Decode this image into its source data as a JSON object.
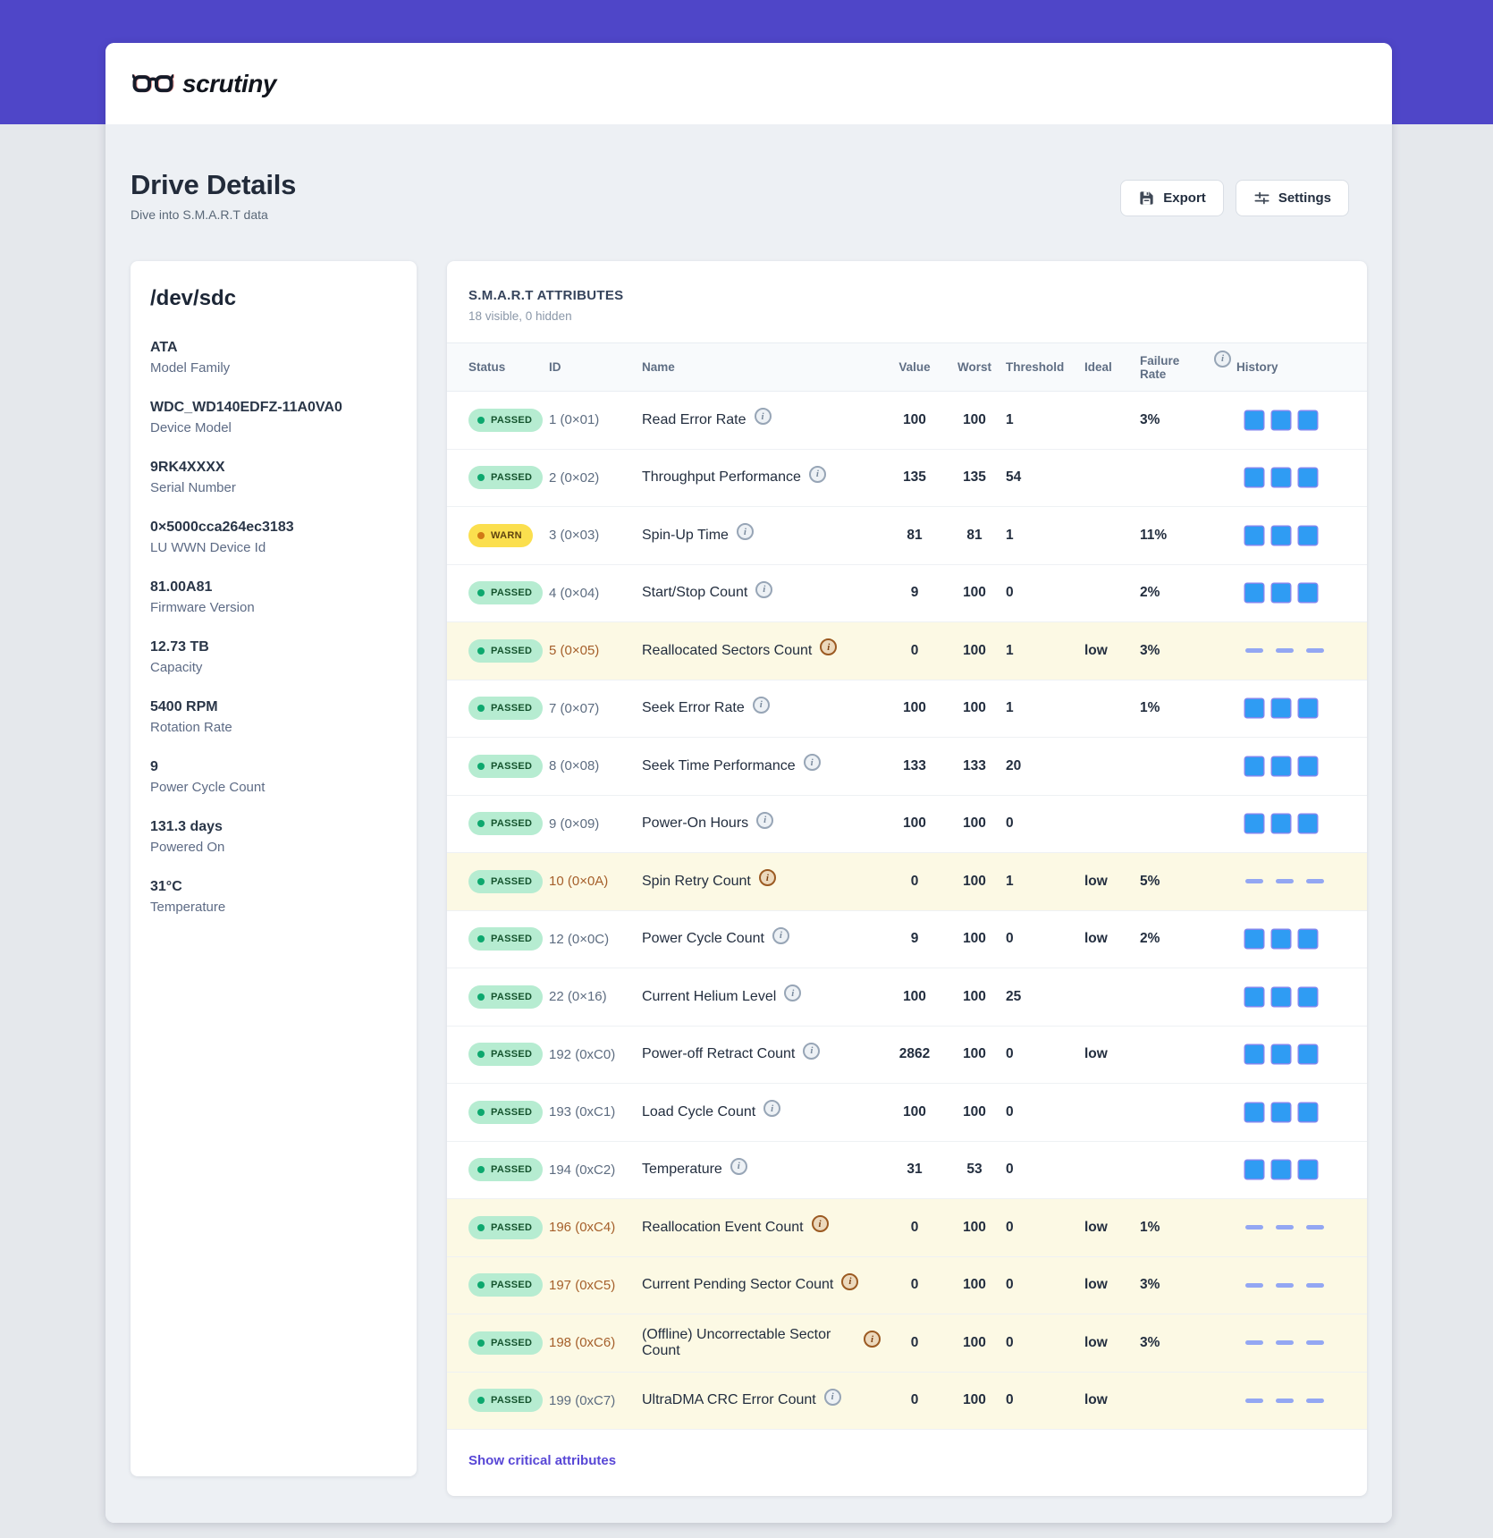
{
  "brand": {
    "name": "scrutiny"
  },
  "page": {
    "title": "Drive Details",
    "subtitle": "Dive into S.M.A.R.T data"
  },
  "toolbar": {
    "export_label": "Export",
    "settings_label": "Settings"
  },
  "device": {
    "path": "/dev/sdc",
    "details": [
      {
        "value": "ATA",
        "label": "Model Family"
      },
      {
        "value": "WDC_WD140EDFZ-11A0VA0",
        "label": "Device Model"
      },
      {
        "value": "9RK4XXXX",
        "label": "Serial Number"
      },
      {
        "value": "0×5000cca264ec3183",
        "label": "LU WWN Device Id"
      },
      {
        "value": "81.00A81",
        "label": "Firmware Version"
      },
      {
        "value": "12.73 TB",
        "label": "Capacity"
      },
      {
        "value": "5400 RPM",
        "label": "Rotation Rate"
      },
      {
        "value": "9",
        "label": "Power Cycle Count"
      },
      {
        "value": "131.3 days",
        "label": "Powered On"
      },
      {
        "value": "31°C",
        "label": "Temperature"
      }
    ]
  },
  "smart": {
    "title": "S.M.A.R.T ATTRIBUTES",
    "subtitle": "18 visible, 0 hidden",
    "columns": [
      "Status",
      "ID",
      "Name",
      "Value",
      "Worst",
      "Threshold",
      "Ideal",
      "Failure Rate",
      "History"
    ],
    "footer_link": "Show critical attributes",
    "history_cells": 3,
    "rows": [
      {
        "status": "PASSED",
        "id": "1 (0×01)",
        "name": "Read Error Rate",
        "value": "100",
        "worst": "100",
        "threshold": "1",
        "ideal": "",
        "failure_rate": "3%",
        "critical": false,
        "accent": "gray",
        "history": "squares"
      },
      {
        "status": "PASSED",
        "id": "2 (0×02)",
        "name": "Throughput Performance",
        "value": "135",
        "worst": "135",
        "threshold": "54",
        "ideal": "",
        "failure_rate": "",
        "critical": false,
        "accent": "gray",
        "history": "squares"
      },
      {
        "status": "WARN",
        "id": "3 (0×03)",
        "name": "Spin-Up Time",
        "value": "81",
        "worst": "81",
        "threshold": "1",
        "ideal": "",
        "failure_rate": "11%",
        "critical": false,
        "accent": "gray",
        "history": "squares"
      },
      {
        "status": "PASSED",
        "id": "4 (0×04)",
        "name": "Start/Stop Count",
        "value": "9",
        "worst": "100",
        "threshold": "0",
        "ideal": "",
        "failure_rate": "2%",
        "critical": false,
        "accent": "gray",
        "history": "squares"
      },
      {
        "status": "PASSED",
        "id": "5 (0×05)",
        "name": "Reallocated Sectors Count",
        "value": "0",
        "worst": "100",
        "threshold": "1",
        "ideal": "low",
        "failure_rate": "3%",
        "critical": true,
        "accent": "brown",
        "history": "dashes"
      },
      {
        "status": "PASSED",
        "id": "7 (0×07)",
        "name": "Seek Error Rate",
        "value": "100",
        "worst": "100",
        "threshold": "1",
        "ideal": "",
        "failure_rate": "1%",
        "critical": false,
        "accent": "gray",
        "history": "squares"
      },
      {
        "status": "PASSED",
        "id": "8 (0×08)",
        "name": "Seek Time Performance",
        "value": "133",
        "worst": "133",
        "threshold": "20",
        "ideal": "",
        "failure_rate": "",
        "critical": false,
        "accent": "gray",
        "history": "squares"
      },
      {
        "status": "PASSED",
        "id": "9 (0×09)",
        "name": "Power-On Hours",
        "value": "100",
        "worst": "100",
        "threshold": "0",
        "ideal": "",
        "failure_rate": "",
        "critical": false,
        "accent": "gray",
        "history": "squares"
      },
      {
        "status": "PASSED",
        "id": "10 (0×0A)",
        "name": "Spin Retry Count",
        "value": "0",
        "worst": "100",
        "threshold": "1",
        "ideal": "low",
        "failure_rate": "5%",
        "critical": true,
        "accent": "brown",
        "history": "dashes"
      },
      {
        "status": "PASSED",
        "id": "12 (0×0C)",
        "name": "Power Cycle Count",
        "value": "9",
        "worst": "100",
        "threshold": "0",
        "ideal": "low",
        "failure_rate": "2%",
        "critical": false,
        "accent": "gray",
        "history": "squares"
      },
      {
        "status": "PASSED",
        "id": "22 (0×16)",
        "name": "Current Helium Level",
        "value": "100",
        "worst": "100",
        "threshold": "25",
        "ideal": "",
        "failure_rate": "",
        "critical": false,
        "accent": "gray",
        "history": "squares"
      },
      {
        "status": "PASSED",
        "id": "192 (0xC0)",
        "name": "Power-off Retract Count",
        "value": "2862",
        "worst": "100",
        "threshold": "0",
        "ideal": "low",
        "failure_rate": "",
        "critical": false,
        "accent": "gray",
        "history": "squares"
      },
      {
        "status": "PASSED",
        "id": "193 (0xC1)",
        "name": "Load Cycle Count",
        "value": "100",
        "worst": "100",
        "threshold": "0",
        "ideal": "",
        "failure_rate": "",
        "critical": false,
        "accent": "gray",
        "history": "squares"
      },
      {
        "status": "PASSED",
        "id": "194 (0xC2)",
        "name": "Temperature",
        "value": "31",
        "worst": "53",
        "threshold": "0",
        "ideal": "",
        "failure_rate": "",
        "critical": false,
        "accent": "gray",
        "history": "squares"
      },
      {
        "status": "PASSED",
        "id": "196 (0xC4)",
        "name": "Reallocation Event Count",
        "value": "0",
        "worst": "100",
        "threshold": "0",
        "ideal": "low",
        "failure_rate": "1%",
        "critical": true,
        "accent": "brown",
        "history": "dashes"
      },
      {
        "status": "PASSED",
        "id": "197 (0xC5)",
        "name": "Current Pending Sector Count",
        "value": "0",
        "worst": "100",
        "threshold": "0",
        "ideal": "low",
        "failure_rate": "3%",
        "critical": true,
        "accent": "brown",
        "history": "dashes"
      },
      {
        "status": "PASSED",
        "id": "198 (0xC6)",
        "name": "(Offline) Uncorrectable Sector Count",
        "value": "0",
        "worst": "100",
        "threshold": "0",
        "ideal": "low",
        "failure_rate": "3%",
        "critical": true,
        "accent": "brown",
        "history": "dashes"
      },
      {
        "status": "PASSED",
        "id": "199 (0xC7)",
        "name": "UltraDMA CRC Error Count",
        "value": "0",
        "worst": "100",
        "threshold": "0",
        "ideal": "low",
        "failure_rate": "",
        "critical": true,
        "accent": "gray",
        "history": "dashes"
      }
    ]
  },
  "colors": {
    "brand_purple": "#4f46c8",
    "body_bg": "#edf0f4",
    "outer_bg": "#e5e8ec",
    "critical_bg": "#fcf9e4",
    "passed_bg": "#b6ecd1",
    "passed_dot": "#0da86e",
    "warn_bg": "#fbdf4e",
    "warn_dot": "#d17a16",
    "history_blue": "#2f9cf3",
    "history_dash": "#93a7f3",
    "link_purple": "#5847d6"
  }
}
